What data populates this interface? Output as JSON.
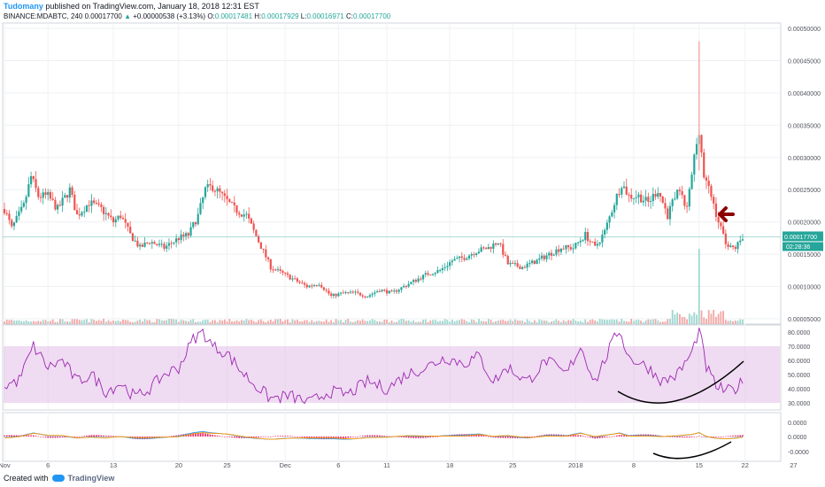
{
  "header": {
    "author": "Tudomany",
    "published": "published on TradingView.com, January 18, 2018 12:31 EST",
    "symbol": "BINANCE:MDABTC, 240",
    "price": "0.00017700",
    "change_arrow": "▲",
    "change": "+0.00000538 (+3.13%)",
    "o_label": "O:",
    "o": "0.00017481",
    "h_label": "H:",
    "h": "0.00017929",
    "l_label": "L:",
    "l": "0.00016971",
    "c_label": "C:",
    "c": "0.00017700"
  },
  "footer": {
    "created": "Created with",
    "brand": "TradingView",
    "icon": "tradingview-cloud-icon"
  },
  "colors": {
    "up": "#26a69a",
    "down": "#ef5350",
    "rsi": "#9c27b0",
    "rsi_band": "#e1bee7",
    "macd": "#2196f3",
    "signal": "#ff9800",
    "hist": "#e91e63",
    "arrow": "#8b0000",
    "curve": "#000000",
    "price_tag": "#26a69a"
  },
  "chart_data": [
    {
      "type": "candlestick",
      "price_axis": [
        "0.00050000",
        "0.00045000",
        "0.00040000",
        "0.00035000",
        "0.00030000",
        "0.00025000",
        "0.00020000",
        "0.00015000",
        "0.00010000",
        "0.00005000"
      ],
      "ylim": [
        5e-05,
        0.0005
      ],
      "x_ticks": [
        "Nov",
        "6",
        "13",
        "20",
        "25",
        "Dec",
        "6",
        "11",
        "18",
        "25",
        "2018",
        "8",
        "15",
        "22",
        "27"
      ],
      "last_price_label": "0.00017700",
      "countdown_label": "02:28:36",
      "close_path": [
        [
          0,
          0.00022
        ],
        [
          3,
          0.00019
        ],
        [
          8,
          0.000225
        ],
        [
          11,
          0.00027
        ],
        [
          14,
          0.00024
        ],
        [
          18,
          0.00024
        ],
        [
          22,
          0.00022
        ],
        [
          27,
          0.00025
        ],
        [
          30,
          0.00021
        ],
        [
          35,
          0.00023
        ],
        [
          40,
          0.00022
        ],
        [
          45,
          0.0002
        ],
        [
          48,
          0.00021
        ],
        [
          52,
          0.00018
        ],
        [
          56,
          0.00016
        ],
        [
          60,
          0.00017
        ],
        [
          66,
          0.00016
        ],
        [
          72,
          0.000175
        ],
        [
          76,
          0.00018
        ],
        [
          80,
          0.00021
        ],
        [
          83,
          0.00025
        ],
        [
          86,
          0.000255
        ],
        [
          90,
          0.00024
        ],
        [
          95,
          0.00022
        ],
        [
          100,
          0.00021
        ],
        [
          105,
          0.00017
        ],
        [
          110,
          0.00013
        ],
        [
          115,
          0.00012
        ],
        [
          120,
          0.00011
        ],
        [
          125,
          0.0001
        ],
        [
          130,
          0.000105
        ],
        [
          135,
          8.5e-05
        ],
        [
          140,
          9e-05
        ],
        [
          145,
          9e-05
        ],
        [
          150,
          8.5e-05
        ],
        [
          155,
          9.5e-05
        ],
        [
          160,
          9e-05
        ],
        [
          165,
          0.0001
        ],
        [
          170,
          0.00011
        ],
        [
          175,
          0.00012
        ],
        [
          180,
          0.000125
        ],
        [
          185,
          0.00014
        ],
        [
          190,
          0.000145
        ],
        [
          195,
          0.000155
        ],
        [
          200,
          0.00016
        ],
        [
          204,
          0.00017
        ],
        [
          208,
          0.000135
        ],
        [
          214,
          0.00013
        ],
        [
          220,
          0.00014
        ],
        [
          225,
          0.00015
        ],
        [
          230,
          0.00016
        ],
        [
          235,
          0.00016
        ],
        [
          240,
          0.00018
        ],
        [
          244,
          0.00016
        ],
        [
          248,
          0.000185
        ],
        [
          252,
          0.00023
        ],
        [
          255,
          0.00026
        ],
        [
          258,
          0.00024
        ],
        [
          262,
          0.00024
        ],
        [
          266,
          0.00023
        ],
        [
          270,
          0.00025
        ],
        [
          274,
          0.00021
        ],
        [
          278,
          0.00025
        ],
        [
          282,
          0.00022
        ],
        [
          285,
          0.0003
        ],
        [
          287,
          0.000345
        ],
        [
          289,
          0.00027
        ],
        [
          292,
          0.00024
        ],
        [
          295,
          0.0002
        ],
        [
          298,
          0.00017
        ],
        [
          300,
          0.00016
        ],
        [
          302,
          0.00016
        ],
        [
          305,
          0.000177
        ]
      ],
      "volume": {
        "spike_x": 287,
        "spike_label": ""
      }
    },
    {
      "type": "line",
      "name": "RSI",
      "y_axis": [
        "80.0000",
        "70.0000",
        "60.0000",
        "50.0000",
        "40.0000",
        "30.0000"
      ],
      "ylim": [
        25,
        85
      ],
      "band": [
        30,
        70
      ],
      "values_path": [
        [
          0,
          42
        ],
        [
          6,
          46
        ],
        [
          12,
          70
        ],
        [
          18,
          55
        ],
        [
          24,
          60
        ],
        [
          30,
          45
        ],
        [
          36,
          50
        ],
        [
          42,
          38
        ],
        [
          48,
          44
        ],
        [
          54,
          34
        ],
        [
          60,
          40
        ],
        [
          66,
          50
        ],
        [
          72,
          55
        ],
        [
          78,
          75
        ],
        [
          82,
          80
        ],
        [
          86,
          70
        ],
        [
          92,
          65
        ],
        [
          98,
          52
        ],
        [
          104,
          42
        ],
        [
          110,
          33
        ],
        [
          118,
          35
        ],
        [
          126,
          30
        ],
        [
          134,
          38
        ],
        [
          142,
          36
        ],
        [
          150,
          45
        ],
        [
          158,
          40
        ],
        [
          166,
          50
        ],
        [
          174,
          55
        ],
        [
          182,
          62
        ],
        [
          190,
          58
        ],
        [
          196,
          63
        ],
        [
          202,
          45
        ],
        [
          208,
          55
        ],
        [
          216,
          45
        ],
        [
          224,
          60
        ],
        [
          232,
          50
        ],
        [
          238,
          70
        ],
        [
          244,
          45
        ],
        [
          250,
          68
        ],
        [
          254,
          82
        ],
        [
          258,
          62
        ],
        [
          266,
          55
        ],
        [
          272,
          45
        ],
        [
          278,
          50
        ],
        [
          284,
          65
        ],
        [
          287,
          82
        ],
        [
          290,
          55
        ],
        [
          294,
          42
        ],
        [
          298,
          38
        ],
        [
          302,
          40
        ],
        [
          305,
          45
        ]
      ]
    },
    {
      "type": "line",
      "name": "MACD",
      "y_axis": [
        "0.0000",
        "0.0000",
        "-0.0000"
      ],
      "ylim": [
        -1,
        1
      ]
    }
  ],
  "annotations": [
    {
      "type": "arrow",
      "name": "left-arrow-icon"
    },
    {
      "type": "curve"
    },
    {
      "type": "curve"
    }
  ]
}
